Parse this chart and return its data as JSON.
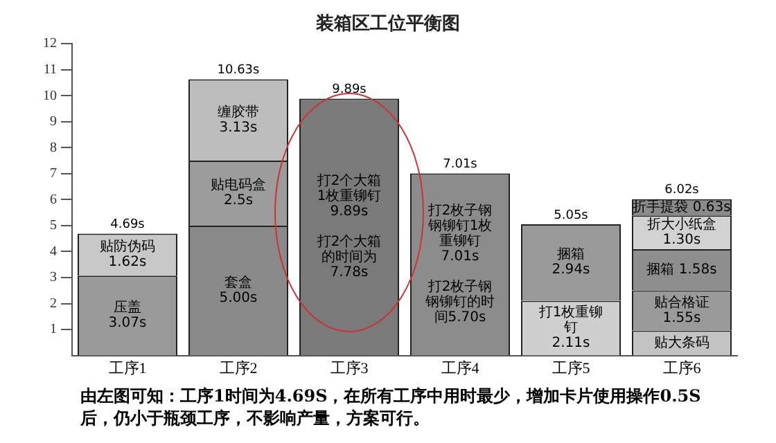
{
  "chart_data": {
    "type": "bar",
    "title": "装箱区工位平衡图",
    "stacked": true,
    "categories": [
      "工序1",
      "工序2",
      "工序3",
      "工序4",
      "工序5",
      "工序6"
    ],
    "series": [
      {
        "values": [
          3.07,
          5.0,
          9.89,
          7.01,
          2.11,
          0.96
        ],
        "colors": [
          "#9a9a9a",
          "#8a8a8a",
          "#7a7a7a",
          "#8c8c8c",
          "#cfcfcf",
          "#c4c4c4"
        ],
        "value_labels": [
          "压盖\n3.07s",
          "套盒\n5.00s",
          "打2个大箱1枚重铆钉\n9.89s\n\n打2个大箱的时间为7.78s",
          "打2枚子钢钢铆钉1枚重铆钉\n7.01s\n\n打2枚子钢钢铆钉的时间5.70s",
          "打1枚重铆钉\n2.11s",
          "贴大条码"
        ]
      },
      {
        "values": [
          1.62,
          2.5,
          null,
          null,
          2.94,
          1.55
        ],
        "colors": [
          "#c8c8c8",
          "#9c9c9c",
          null,
          null,
          "#9a9a9a",
          "#9a9a9a"
        ],
        "value_labels": [
          "贴防伪码\n1.62s",
          "贴电码盒\n2.5s",
          null,
          null,
          "捆箱\n2.94s",
          "贴合格证\n1.55s"
        ]
      },
      {
        "values": [
          null,
          3.13,
          null,
          null,
          null,
          1.58
        ],
        "colors": [
          null,
          "#bdbdbd",
          null,
          null,
          null,
          "#8e8e8e"
        ],
        "value_labels": [
          null,
          "缠胶带\n3.13s",
          null,
          null,
          null,
          "捆箱 1.58s"
        ]
      },
      {
        "values": [
          null,
          null,
          null,
          null,
          null,
          1.3
        ],
        "colors": [
          null,
          null,
          null,
          null,
          null,
          "#d2d2d2"
        ],
        "value_labels": [
          null,
          null,
          null,
          null,
          null,
          "折大小纸盒\n1.30s"
        ]
      },
      {
        "values": [
          null,
          null,
          null,
          null,
          null,
          0.63
        ],
        "colors": [
          null,
          null,
          null,
          null,
          null,
          "#8a8a8a"
        ],
        "value_labels": [
          null,
          null,
          null,
          null,
          null,
          "折手提袋 0.63s"
        ]
      }
    ],
    "totals": [
      "4.69s",
      "10.63s",
      "9.89s",
      "7.01s",
      "5.05s",
      "6.02s"
    ],
    "ylim": [
      0,
      12
    ],
    "yticks": [
      1,
      2,
      3,
      4,
      5,
      6,
      7,
      8,
      9,
      10,
      11,
      12
    ],
    "legend": false,
    "annotations": [
      "由左图可知：工序1时间为4.69S，在所有工序中用时最少，增加卡片使用操作0.5S后，仍小于瓶颈工序，不影响产量，方案可行。"
    ]
  }
}
